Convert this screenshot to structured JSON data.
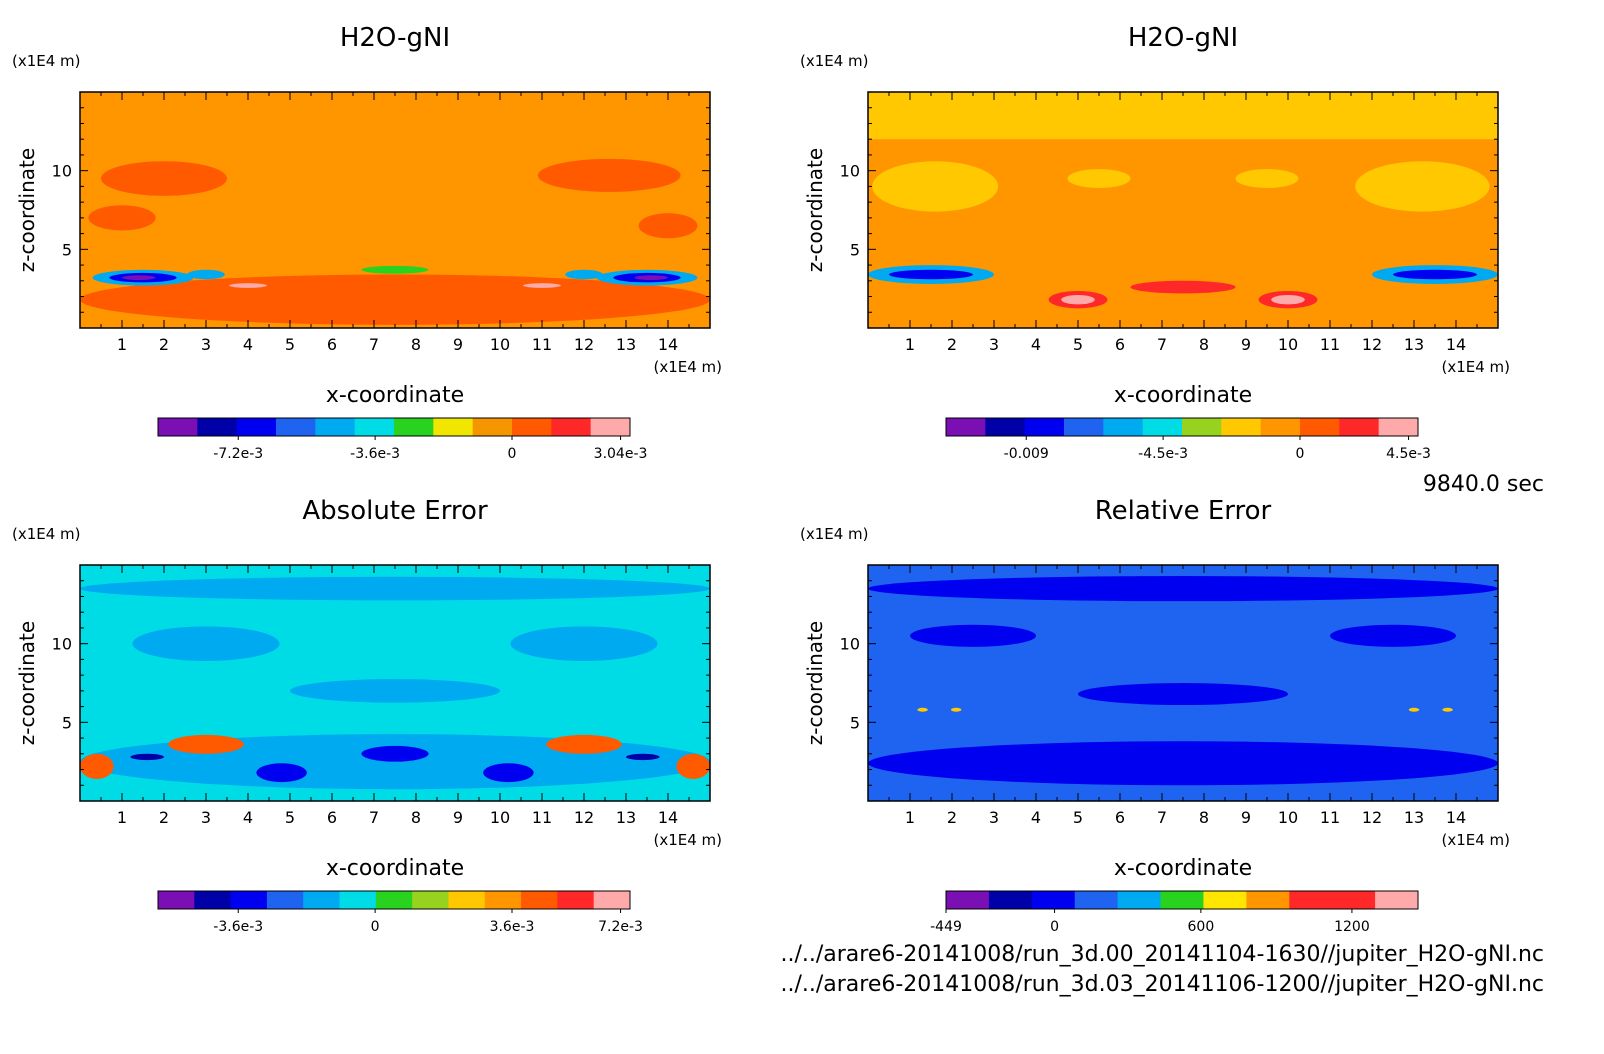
{
  "figure": {
    "time_label": "9840.0 sec",
    "file_paths": [
      "../../arare6-20141008/run_3d.00_20141104-1630//jupiter_H2O-gNI.nc",
      "../../arare6-20141008/run_3d.03_20141106-1200//jupiter_H2O-gNI.nc"
    ]
  },
  "chart_data": [
    {
      "type": "heatmap",
      "title": "H2O-gNI",
      "xlabel": "x-coordinate",
      "ylabel": "z-coordinate",
      "x_unit": "(x1E4 m)",
      "y_unit": "(x1E4 m)",
      "xlim": [
        0,
        15
      ],
      "ylim": [
        0,
        15
      ],
      "x_ticks": [
        "1",
        "2",
        "3",
        "4",
        "5",
        "6",
        "7",
        "8",
        "9",
        "10",
        "11",
        "12",
        "13",
        "14"
      ],
      "y_ticks": [
        "5",
        "10"
      ],
      "colorbar": {
        "colors": [
          "#7a10b4",
          "#0000a8",
          "#0000f0",
          "#1e64f0",
          "#00aaf0",
          "#00dce6",
          "#28d21e",
          "#f0e600",
          "#f59600",
          "#ff5a00",
          "#ff2828",
          "#ffaaaa"
        ],
        "tick_labels": [
          "-7.2e-3",
          "-3.6e-3",
          "0",
          "3.04e-3"
        ]
      },
      "field": {
        "background": "#ff9600",
        "upper_top_band": "#ff9600",
        "blobs": [
          {
            "x": 2,
            "z": 9.5,
            "w": 3,
            "h": 2.2,
            "c": "#ff5a00"
          },
          {
            "x": 12.6,
            "z": 9.7,
            "w": 3.4,
            "h": 2.1,
            "c": "#ff5a00"
          },
          {
            "x": 1,
            "z": 7,
            "w": 1.6,
            "h": 1.6,
            "c": "#ff5a00"
          },
          {
            "x": 14,
            "z": 6.5,
            "w": 1.4,
            "h": 1.6,
            "c": "#ff5a00"
          },
          {
            "x": 7.5,
            "z": 1.8,
            "w": 15,
            "h": 3.2,
            "c": "#ff5a00"
          },
          {
            "x": 1.5,
            "z": 3.2,
            "w": 2.4,
            "h": 1.0,
            "c": "#00aaf0"
          },
          {
            "x": 13.5,
            "z": 3.2,
            "w": 2.4,
            "h": 1.0,
            "c": "#00aaf0"
          },
          {
            "x": 1.5,
            "z": 3.2,
            "w": 1.6,
            "h": 0.6,
            "c": "#0000f0"
          },
          {
            "x": 13.5,
            "z": 3.2,
            "w": 1.6,
            "h": 0.6,
            "c": "#0000f0"
          },
          {
            "x": 1.4,
            "z": 3.2,
            "w": 0.8,
            "h": 0.3,
            "c": "#7a10b4"
          },
          {
            "x": 13.6,
            "z": 3.2,
            "w": 0.8,
            "h": 0.3,
            "c": "#7a10b4"
          },
          {
            "x": 3,
            "z": 3.4,
            "w": 0.9,
            "h": 0.6,
            "c": "#00aaf0"
          },
          {
            "x": 12,
            "z": 3.4,
            "w": 0.9,
            "h": 0.6,
            "c": "#00aaf0"
          },
          {
            "x": 7.5,
            "z": 3.7,
            "w": 1.6,
            "h": 0.5,
            "c": "#28d21e"
          },
          {
            "x": 4,
            "z": 2.7,
            "w": 0.9,
            "h": 0.3,
            "c": "#ffaaaa"
          },
          {
            "x": 11,
            "z": 2.7,
            "w": 0.9,
            "h": 0.3,
            "c": "#ffaaaa"
          }
        ]
      }
    },
    {
      "type": "heatmap",
      "title": "H2O-gNI",
      "xlabel": "x-coordinate",
      "ylabel": "z-coordinate",
      "x_unit": "(x1E4 m)",
      "y_unit": "(x1E4 m)",
      "xlim": [
        0,
        15
      ],
      "ylim": [
        0,
        15
      ],
      "x_ticks": [
        "1",
        "2",
        "3",
        "4",
        "5",
        "6",
        "7",
        "8",
        "9",
        "10",
        "11",
        "12",
        "13",
        "14"
      ],
      "y_ticks": [
        "5",
        "10"
      ],
      "colorbar": {
        "colors": [
          "#7a10b4",
          "#0000a8",
          "#0000f0",
          "#1e64f0",
          "#00aaf0",
          "#00dce6",
          "#96d21e",
          "#ffc800",
          "#ff9600",
          "#ff5a00",
          "#ff2828",
          "#ffaaaa"
        ],
        "tick_labels": [
          "-0.009",
          "-4.5e-3",
          "0",
          "4.5e-3"
        ]
      },
      "field": {
        "background": "#ff9600",
        "upper_top_band": "#ffc800",
        "blobs": [
          {
            "x": 1.6,
            "z": 9,
            "w": 3.0,
            "h": 3.2,
            "c": "#ffc800"
          },
          {
            "x": 13.2,
            "z": 9,
            "w": 3.2,
            "h": 3.2,
            "c": "#ffc800"
          },
          {
            "x": 5.5,
            "z": 9.5,
            "w": 1.5,
            "h": 1.2,
            "c": "#ffc800"
          },
          {
            "x": 9.5,
            "z": 9.5,
            "w": 1.5,
            "h": 1.2,
            "c": "#ffc800"
          },
          {
            "x": 1.5,
            "z": 3.4,
            "w": 3.0,
            "h": 1.2,
            "c": "#00aaf0"
          },
          {
            "x": 13.5,
            "z": 3.4,
            "w": 3.0,
            "h": 1.2,
            "c": "#00aaf0"
          },
          {
            "x": 1.5,
            "z": 3.4,
            "w": 2.0,
            "h": 0.6,
            "c": "#0000f0"
          },
          {
            "x": 13.5,
            "z": 3.4,
            "w": 2.0,
            "h": 0.6,
            "c": "#0000f0"
          },
          {
            "x": 5,
            "z": 1.8,
            "w": 1.4,
            "h": 1.1,
            "c": "#ff2828"
          },
          {
            "x": 10,
            "z": 1.8,
            "w": 1.4,
            "h": 1.1,
            "c": "#ff2828"
          },
          {
            "x": 7.5,
            "z": 2.6,
            "w": 2.5,
            "h": 0.8,
            "c": "#ff2828"
          },
          {
            "x": 5,
            "z": 1.8,
            "w": 0.8,
            "h": 0.6,
            "c": "#ffaaaa"
          },
          {
            "x": 10,
            "z": 1.8,
            "w": 0.8,
            "h": 0.6,
            "c": "#ffaaaa"
          }
        ]
      }
    },
    {
      "type": "heatmap",
      "title": "Absolute Error",
      "xlabel": "x-coordinate",
      "ylabel": "z-coordinate",
      "x_unit": "(x1E4 m)",
      "y_unit": "(x1E4 m)",
      "xlim": [
        0,
        15
      ],
      "ylim": [
        0,
        15
      ],
      "x_ticks": [
        "1",
        "2",
        "3",
        "4",
        "5",
        "6",
        "7",
        "8",
        "9",
        "10",
        "11",
        "12",
        "13",
        "14"
      ],
      "y_ticks": [
        "5",
        "10"
      ],
      "colorbar": {
        "colors": [
          "#7a10b4",
          "#0000a8",
          "#0000f0",
          "#1e64f0",
          "#00aaf0",
          "#00dce6",
          "#28d21e",
          "#96d21e",
          "#ffc800",
          "#ff9600",
          "#ff5a00",
          "#ff2828",
          "#ffaaaa"
        ],
        "tick_labels": [
          "-3.6e-3",
          "0",
          "3.6e-3",
          "7.2e-3"
        ]
      },
      "field": {
        "background": "#00dce6",
        "upper_top_band": "#00dce6",
        "blobs": [
          {
            "x": 7.5,
            "z": 13.5,
            "w": 15,
            "h": 1.5,
            "c": "#00aaf0"
          },
          {
            "x": 3,
            "z": 10,
            "w": 3.5,
            "h": 2.2,
            "c": "#00aaf0"
          },
          {
            "x": 12,
            "z": 10,
            "w": 3.5,
            "h": 2.2,
            "c": "#00aaf0"
          },
          {
            "x": 7.5,
            "z": 7,
            "w": 5,
            "h": 1.5,
            "c": "#00aaf0"
          },
          {
            "x": 7.5,
            "z": 2.5,
            "w": 15,
            "h": 3.5,
            "c": "#00aaf0"
          },
          {
            "x": 3,
            "z": 3.6,
            "w": 1.8,
            "h": 1.2,
            "c": "#ff5a00"
          },
          {
            "x": 12,
            "z": 3.6,
            "w": 1.8,
            "h": 1.2,
            "c": "#ff5a00"
          },
          {
            "x": 0.4,
            "z": 2.2,
            "w": 0.8,
            "h": 1.6,
            "c": "#ff5a00"
          },
          {
            "x": 14.6,
            "z": 2.2,
            "w": 0.8,
            "h": 1.6,
            "c": "#ff5a00"
          },
          {
            "x": 4.8,
            "z": 1.8,
            "w": 1.2,
            "h": 1.2,
            "c": "#0000f0"
          },
          {
            "x": 10.2,
            "z": 1.8,
            "w": 1.2,
            "h": 1.2,
            "c": "#0000f0"
          },
          {
            "x": 7.5,
            "z": 3,
            "w": 1.6,
            "h": 1.0,
            "c": "#0000f0"
          },
          {
            "x": 1.6,
            "z": 2.8,
            "w": 0.8,
            "h": 0.4,
            "c": "#0000a8"
          },
          {
            "x": 13.4,
            "z": 2.8,
            "w": 0.8,
            "h": 0.4,
            "c": "#0000a8"
          }
        ]
      }
    },
    {
      "type": "heatmap",
      "title": "Relative Error",
      "xlabel": "x-coordinate",
      "ylabel": "z-coordinate",
      "x_unit": "(x1E4 m)",
      "y_unit": "(x1E4 m)",
      "xlim": [
        0,
        15
      ],
      "ylim": [
        0,
        15
      ],
      "x_ticks": [
        "1",
        "2",
        "3",
        "4",
        "5",
        "6",
        "7",
        "8",
        "9",
        "10",
        "11",
        "12",
        "13",
        "14"
      ],
      "y_ticks": [
        "5",
        "10"
      ],
      "colorbar": {
        "colors": [
          "#7a10b4",
          "#0000a8",
          "#0000f0",
          "#1e64f0",
          "#00aaf0",
          "#28d21e",
          "#ffe600",
          "#ff9600",
          "#ff2828",
          "#ff2828",
          "#ffaaaa"
        ],
        "tick_labels": [
          "-449",
          "0",
          "600",
          "1200"
        ]
      },
      "field": {
        "background": "#1e64f0",
        "upper_top_band": "#1e64f0",
        "blobs": [
          {
            "x": 7.5,
            "z": 13.5,
            "w": 15,
            "h": 1.6,
            "c": "#0000f0"
          },
          {
            "x": 2.5,
            "z": 10.5,
            "w": 3,
            "h": 1.4,
            "c": "#0000f0"
          },
          {
            "x": 12.5,
            "z": 10.5,
            "w": 3,
            "h": 1.4,
            "c": "#0000f0"
          },
          {
            "x": 7.5,
            "z": 6.8,
            "w": 5,
            "h": 1.4,
            "c": "#0000f0"
          },
          {
            "x": 7.5,
            "z": 2.4,
            "w": 15,
            "h": 2.8,
            "c": "#0000f0"
          },
          {
            "x": 1.3,
            "z": 5.8,
            "w": 0.25,
            "h": 0.25,
            "c": "#ffc800"
          },
          {
            "x": 2.1,
            "z": 5.8,
            "w": 0.25,
            "h": 0.25,
            "c": "#ffc800"
          },
          {
            "x": 13.0,
            "z": 5.8,
            "w": 0.25,
            "h": 0.25,
            "c": "#ffc800"
          },
          {
            "x": 13.8,
            "z": 5.8,
            "w": 0.25,
            "h": 0.25,
            "c": "#ffc800"
          }
        ]
      }
    }
  ]
}
